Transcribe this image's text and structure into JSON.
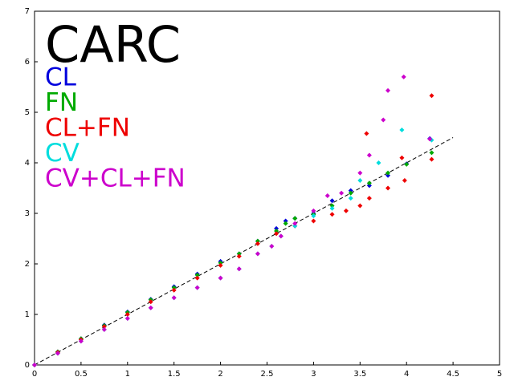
{
  "chart_data": {
    "type": "scatter",
    "title": "CARC",
    "xlim": [
      0,
      5
    ],
    "ylim": [
      0,
      7
    ],
    "xticks": [
      0,
      0.5,
      1,
      1.5,
      2,
      2.5,
      3,
      3.5,
      4,
      4.5,
      5
    ],
    "yticks": [
      0,
      1,
      2,
      3,
      4,
      5,
      6,
      7
    ],
    "reference_line": {
      "x": [
        0,
        4.5
      ],
      "y": [
        0,
        4.5
      ],
      "color": "#000000"
    },
    "series": [
      {
        "name": "CL",
        "color": "#0000dd",
        "x": [
          0,
          0.25,
          0.5,
          0.75,
          1,
          1.25,
          1.5,
          1.75,
          2,
          2.2,
          2.4,
          2.6,
          2.7,
          2.8,
          3,
          3.2,
          3.4,
          3.6,
          3.8,
          4,
          4.25
        ],
        "y": [
          0,
          0.26,
          0.52,
          0.79,
          1.05,
          1.3,
          1.55,
          1.8,
          2.05,
          2.2,
          2.45,
          2.7,
          2.85,
          2.9,
          3.0,
          3.25,
          3.45,
          3.55,
          3.75,
          3.98,
          4.48
        ]
      },
      {
        "name": "FN",
        "color": "#00aa00",
        "x": [
          0,
          0.25,
          0.5,
          0.75,
          1,
          1.25,
          1.5,
          1.75,
          2,
          2.2,
          2.4,
          2.6,
          2.7,
          2.8,
          3,
          3.2,
          3.4,
          3.6,
          3.8,
          4,
          4.27
        ],
        "y": [
          0,
          0.26,
          0.52,
          0.78,
          1.04,
          1.29,
          1.53,
          1.78,
          2.02,
          2.2,
          2.45,
          2.65,
          2.8,
          2.9,
          2.98,
          3.15,
          3.4,
          3.6,
          3.8,
          3.97,
          4.2
        ]
      },
      {
        "name": "CL+FN",
        "color": "#ee0000",
        "x": [
          0,
          0.25,
          0.5,
          0.75,
          1,
          1.25,
          1.5,
          1.75,
          2,
          2.2,
          2.4,
          2.6,
          2.8,
          3,
          3.2,
          3.35,
          3.5,
          3.6,
          3.8,
          3.98,
          4.27,
          3.57,
          4.27,
          3.95
        ],
        "y": [
          0,
          0.25,
          0.5,
          0.76,
          1.0,
          1.25,
          1.48,
          1.72,
          1.97,
          2.15,
          2.4,
          2.6,
          2.75,
          2.85,
          2.98,
          3.05,
          3.15,
          3.3,
          3.5,
          3.65,
          4.07,
          4.58,
          5.33,
          4.1
        ]
      },
      {
        "name": "CV",
        "color": "#00dddd",
        "x": [
          0,
          0.25,
          0.5,
          0.75,
          1,
          1.25,
          1.5,
          1.75,
          2,
          2.2,
          2.4,
          2.55,
          2.65,
          2.8,
          3,
          3.2,
          3.4,
          3.5,
          3.7,
          3.95,
          4.27
        ],
        "y": [
          0,
          0.23,
          0.47,
          0.7,
          0.92,
          1.13,
          1.33,
          1.53,
          1.72,
          1.9,
          2.2,
          2.35,
          2.55,
          2.75,
          2.95,
          3.1,
          3.3,
          3.65,
          4.0,
          4.65,
          4.45
        ]
      },
      {
        "name": "CV+CL+FN",
        "color": "#cc00cc",
        "x": [
          0,
          0.25,
          0.5,
          0.75,
          1,
          1.25,
          1.5,
          1.75,
          2,
          2.2,
          2.4,
          2.55,
          2.65,
          2.8,
          3,
          3.15,
          3.3,
          3.5,
          3.6,
          3.75,
          3.8,
          3.97,
          4.25
        ],
        "y": [
          0,
          0.23,
          0.47,
          0.7,
          0.92,
          1.13,
          1.33,
          1.53,
          1.72,
          1.9,
          2.2,
          2.35,
          2.55,
          2.8,
          3.05,
          3.35,
          3.4,
          3.8,
          4.15,
          4.85,
          5.43,
          5.7,
          4.47
        ]
      }
    ]
  }
}
